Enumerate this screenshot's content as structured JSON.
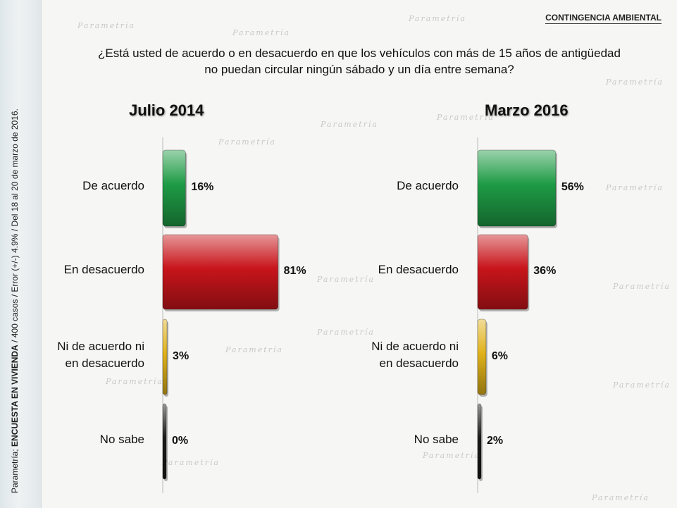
{
  "header": {
    "tag": "CONTINGENCIA AMBIENTAL",
    "question_line1": "¿Está usted de acuerdo o en desacuerdo en que los vehículos con más de 15 años de antigüedad",
    "question_line2": "no puedan circular ningún sábado y un día entre semana?"
  },
  "side_note": {
    "prefix": "Parametría; ",
    "bold": "ENCUESTA EN VIVIENDA",
    "rest": " / 400 casos / Error (+/-) 4.9% / Del 18 al 20 de marzo de 2016."
  },
  "watermark_text": "Parametría",
  "colors": {
    "de_acuerdo": "#1e9b45",
    "en_desacuerdo": "#c8151b",
    "ni_ni": "#e0b21a",
    "no_sabe": "#1a1a1a"
  },
  "chart_data": [
    {
      "type": "bar",
      "orientation": "horizontal",
      "title": "Julio 2014",
      "categories": [
        "De acuerdo",
        "En desacuerdo",
        "Ni de acuerdo ni en desacuerdo",
        "No sabe"
      ],
      "values": [
        16,
        81,
        3,
        0
      ],
      "value_labels": [
        "16%",
        "81%",
        "3%",
        "0%"
      ],
      "xlim": [
        0,
        100
      ]
    },
    {
      "type": "bar",
      "orientation": "horizontal",
      "title": "Marzo 2016",
      "categories": [
        "De acuerdo",
        "En desacuerdo",
        "Ni de acuerdo ni en desacuerdo",
        "No sabe"
      ],
      "values": [
        56,
        36,
        6,
        2
      ],
      "value_labels": [
        "56%",
        "36%",
        "6%",
        "2%"
      ],
      "xlim": [
        0,
        100
      ]
    }
  ],
  "category_display": [
    [
      "De acuerdo"
    ],
    [
      "En desacuerdo"
    ],
    [
      "Ni de acuerdo ni",
      "en desacuerdo"
    ],
    [
      "No sabe"
    ]
  ]
}
